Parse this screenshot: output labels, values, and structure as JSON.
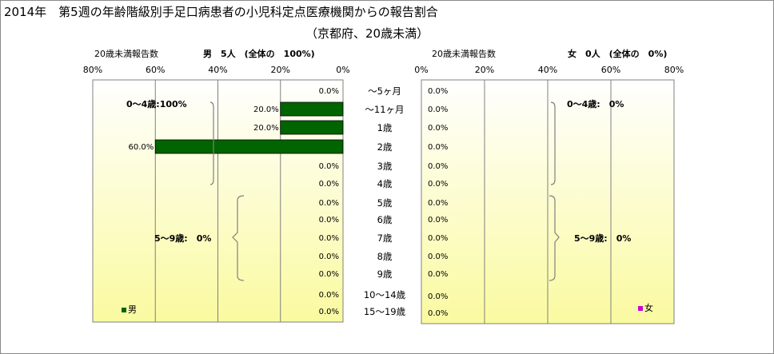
{
  "title": "2014年　第5週の年齢階級別手足口病患者の小児科定点医療機関からの報告割合",
  "subtitle": "（京都府、20歳未満）",
  "colors": {
    "male_bar": "#006400",
    "female_marker": "#cc00cc",
    "plot_top": "#ffffff",
    "plot_bottom": "#fafaa0",
    "grid": "#808080"
  },
  "chart_data": [
    {
      "type": "bar",
      "orientation": "horizontal",
      "direction": "right-to-left",
      "header_left": "20歳未満報告数",
      "header_right": "男　5人　(全体の　100%)",
      "categories": [
        "～5ヶ月",
        "～11ヶ月",
        "1歳",
        "2歳",
        "3歳",
        "4歳",
        "5歳",
        "6歳",
        "7歳",
        "8歳",
        "9歳",
        "10～14歳",
        "15～19歳"
      ],
      "series": [
        {
          "name": "男",
          "values": [
            0,
            20,
            20,
            60,
            0,
            0,
            0,
            0,
            0,
            0,
            0,
            0,
            0
          ]
        }
      ],
      "value_labels": [
        "0.0%",
        "20.0%",
        "20.0%",
        "60.0%",
        "0.0%",
        "0.0%",
        "0.0%",
        "0.0%",
        "0.0%",
        "0.0%",
        "0.0%",
        "0.0%",
        "0.0%"
      ],
      "xlim": [
        0,
        80
      ],
      "tick_labels": [
        "80%",
        "60%",
        "40%",
        "20%",
        "0%"
      ],
      "groups": [
        {
          "label": "0～4歳:100%",
          "from": 0,
          "to": 5
        },
        {
          "label": "5～9歳:　0%",
          "from": 6,
          "to": 10
        }
      ],
      "legend": "男",
      "legend_position": "bottom-left"
    },
    {
      "type": "bar",
      "orientation": "horizontal",
      "direction": "left-to-right",
      "header_left": "20歳未満報告数",
      "header_right": "女　0人　(全体の　0%)",
      "categories": [
        "～5ヶ月",
        "～11ヶ月",
        "1歳",
        "2歳",
        "3歳",
        "4歳",
        "5歳",
        "6歳",
        "7歳",
        "8歳",
        "9歳",
        "10～14歳",
        "15～19歳"
      ],
      "series": [
        {
          "name": "女",
          "values": [
            0,
            0,
            0,
            0,
            0,
            0,
            0,
            0,
            0,
            0,
            0,
            0,
            0
          ]
        }
      ],
      "value_labels": [
        "0.0%",
        "0.0%",
        "0.0%",
        "0.0%",
        "0.0%",
        "0.0%",
        "0.0%",
        "0.0%",
        "0.0%",
        "0.0%",
        "0.0%",
        "0.0%",
        "0.0%"
      ],
      "xlim": [
        0,
        80
      ],
      "tick_labels": [
        "0%",
        "20%",
        "40%",
        "60%",
        "80%"
      ],
      "groups": [
        {
          "label": "0～4歳:　0%",
          "from": 0,
          "to": 5
        },
        {
          "label": "5～9歳:　0%",
          "from": 6,
          "to": 10
        }
      ],
      "legend": "女",
      "legend_position": "bottom-right"
    }
  ]
}
